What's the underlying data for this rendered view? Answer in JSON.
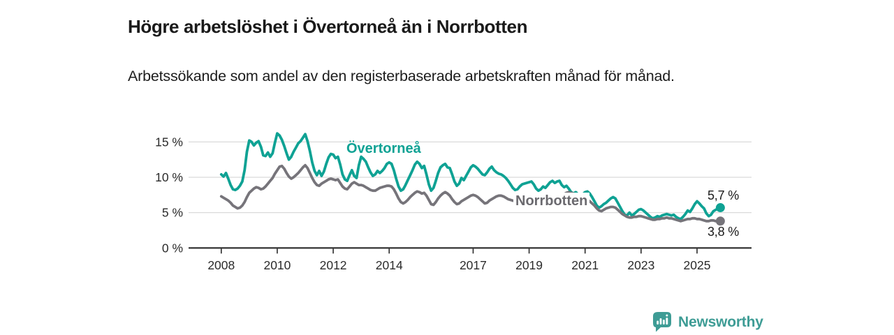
{
  "header": {
    "title": "Högre arbetslöshet i Övertorneå än i Norrbotten",
    "subtitle": "Arbetssökande som andel av den registerbaserade arbetskraften månad för månad."
  },
  "chart": {
    "series_labels": {
      "overtornea": "Övertorneå",
      "norrbotten": "Norrbotten"
    },
    "end_labels": {
      "overtornea": "5,7 %",
      "norrbotten": "3,8 %"
    }
  },
  "footer": {
    "brand": "Newsworthy"
  },
  "colors": {
    "overtornea_line": "#0fa294",
    "norrbotten_line": "#76747a",
    "brand_teal": "#3e9c95",
    "axis": "#2b2b2b",
    "gridline": "#dadada",
    "text": "#1a1a1a"
  },
  "chart_data": {
    "type": "line",
    "title": "Högre arbetslöshet i Övertorneå än i Norrbotten",
    "subtitle": "Arbetssökande som andel av den registerbaserade arbetskraften månad för månad.",
    "unit": "%",
    "x_start_year": 2008,
    "points_per_year": 12,
    "x_axis_ticks": [
      {
        "label": "2008",
        "year": 2008
      },
      {
        "label": "2010",
        "year": 2010
      },
      {
        "label": "2012",
        "year": 2012
      },
      {
        "label": "2014",
        "year": 2014
      },
      {
        "label": "2017",
        "year": 2017
      },
      {
        "label": "2019",
        "year": 2019
      },
      {
        "label": "2021",
        "year": 2021
      },
      {
        "label": "2023",
        "year": 2023
      },
      {
        "label": "2025",
        "year": 2025
      }
    ],
    "y_axis_ticks": [
      {
        "label": "0 %",
        "value": 0
      },
      {
        "label": "5 %",
        "value": 5
      },
      {
        "label": "10 %",
        "value": 10
      },
      {
        "label": "15 %",
        "value": 15
      }
    ],
    "ylim": [
      0,
      16.5
    ],
    "grid": "horizontal",
    "legend_position": "inline-labels",
    "series": [
      {
        "name": "Övertorneå",
        "color": "#0fa294",
        "end_value": 5.7,
        "end_value_label": "5,7 %",
        "values": [
          10.4,
          10.1,
          10.6,
          9.8,
          8.9,
          8.3,
          8.2,
          8.4,
          8.8,
          9.4,
          11.0,
          13.6,
          15.2,
          15.0,
          14.5,
          14.9,
          15.1,
          14.3,
          13.1,
          13.0,
          13.5,
          12.9,
          13.4,
          14.9,
          16.2,
          15.9,
          15.3,
          14.4,
          13.4,
          12.5,
          12.9,
          13.6,
          14.2,
          14.8,
          15.1,
          15.6,
          16.1,
          15.1,
          13.7,
          12.1,
          10.9,
          10.3,
          10.9,
          10.2,
          10.8,
          11.9,
          12.8,
          13.3,
          13.2,
          12.7,
          12.9,
          11.8,
          10.4,
          9.7,
          9.5,
          10.3,
          11.0,
          10.2,
          9.9,
          11.7,
          12.9,
          12.6,
          12.2,
          11.4,
          10.7,
          10.2,
          10.4,
          10.9,
          10.6,
          10.9,
          11.3,
          11.9,
          12.1,
          11.9,
          11.0,
          9.8,
          8.7,
          8.1,
          8.3,
          8.9,
          9.6,
          10.3,
          11.0,
          11.8,
          12.2,
          11.9,
          11.3,
          11.6,
          10.4,
          9.0,
          8.1,
          8.5,
          9.5,
          10.6,
          11.4,
          11.7,
          11.9,
          11.4,
          11.3,
          10.4,
          9.4,
          8.8,
          9.1,
          9.9,
          9.6,
          10.2,
          10.8,
          11.4,
          11.7,
          11.5,
          11.2,
          10.8,
          10.4,
          10.3,
          10.7,
          11.2,
          11.5,
          11.0,
          10.7,
          10.5,
          10.4,
          10.2,
          9.9,
          9.5,
          9.0,
          8.5,
          8.2,
          8.3,
          8.7,
          9.0,
          9.1,
          9.2,
          9.3,
          9.4,
          9.0,
          8.4,
          8.1,
          8.3,
          8.7,
          8.5,
          8.9,
          9.3,
          9.5,
          9.2,
          9.4,
          9.5,
          8.9,
          8.6,
          8.8,
          8.4,
          7.9,
          7.7,
          7.9,
          7.6,
          7.4,
          7.6,
          7.9,
          8.0,
          7.7,
          7.2,
          6.6,
          6.0,
          5.7,
          5.9,
          6.2,
          6.4,
          6.7,
          7.0,
          7.2,
          7.0,
          6.4,
          5.8,
          5.2,
          4.7,
          4.6,
          5.0,
          4.6,
          4.8,
          5.1,
          5.4,
          5.5,
          5.3,
          5.0,
          4.7,
          4.4,
          4.2,
          4.3,
          4.5,
          4.4,
          4.6,
          4.7,
          4.8,
          4.7,
          4.6,
          4.7,
          4.4,
          4.2,
          4.1,
          4.4,
          4.8,
          5.3,
          5.1,
          5.6,
          6.2,
          6.6,
          6.3,
          5.9,
          5.6,
          4.9,
          4.5,
          4.7,
          5.2,
          5.4,
          5.6,
          5.7
        ]
      },
      {
        "name": "Norrbotten",
        "color": "#76747a",
        "end_value": 3.8,
        "end_value_label": "3,8 %",
        "values": [
          7.3,
          7.1,
          6.9,
          6.7,
          6.4,
          6.0,
          5.8,
          5.6,
          5.7,
          6.0,
          6.5,
          7.2,
          7.8,
          8.1,
          8.4,
          8.6,
          8.5,
          8.3,
          8.4,
          8.7,
          9.1,
          9.5,
          9.9,
          10.5,
          11.0,
          11.5,
          11.6,
          11.2,
          10.6,
          10.1,
          9.8,
          10.0,
          10.3,
          10.6,
          11.0,
          11.4,
          11.7,
          11.3,
          10.6,
          9.9,
          9.3,
          8.9,
          8.8,
          9.1,
          9.3,
          9.5,
          9.7,
          9.8,
          9.7,
          9.6,
          9.7,
          9.2,
          8.7,
          8.4,
          8.3,
          8.7,
          9.1,
          9.3,
          9.1,
          8.9,
          8.9,
          8.8,
          8.6,
          8.4,
          8.2,
          8.1,
          8.1,
          8.3,
          8.5,
          8.6,
          8.7,
          8.8,
          8.8,
          8.7,
          8.3,
          7.7,
          7.0,
          6.5,
          6.3,
          6.5,
          6.8,
          7.2,
          7.5,
          7.8,
          8.0,
          7.9,
          7.7,
          7.8,
          7.4,
          6.8,
          6.2,
          6.1,
          6.5,
          7.0,
          7.4,
          7.7,
          7.9,
          7.7,
          7.4,
          6.9,
          6.5,
          6.2,
          6.3,
          6.6,
          6.8,
          7.0,
          7.2,
          7.4,
          7.5,
          7.4,
          7.2,
          6.9,
          6.6,
          6.3,
          6.4,
          6.7,
          6.9,
          7.1,
          7.3,
          7.4,
          7.4,
          7.3,
          7.1,
          6.9,
          6.8,
          6.7,
          6.6,
          6.6,
          6.5,
          6.4,
          6.4,
          6.5,
          6.6,
          6.7,
          6.6,
          6.4,
          6.3,
          6.3,
          6.4,
          6.5,
          6.5,
          6.6,
          6.6,
          6.7,
          6.9,
          7.0,
          7.2,
          7.6,
          7.8,
          7.9,
          7.8,
          7.7,
          7.5,
          7.3,
          7.1,
          7.0,
          6.9,
          6.8,
          6.6,
          6.3,
          6.0,
          5.6,
          5.3,
          5.2,
          5.4,
          5.6,
          5.7,
          5.8,
          5.8,
          5.7,
          5.4,
          5.1,
          4.8,
          4.6,
          4.4,
          4.3,
          4.3,
          4.4,
          4.4,
          4.5,
          4.5,
          4.4,
          4.3,
          4.2,
          4.1,
          4.0,
          4.0,
          4.1,
          4.1,
          4.2,
          4.2,
          4.3,
          4.2,
          4.2,
          4.1,
          4.0,
          3.9,
          3.8,
          3.9,
          4.0,
          4.1,
          4.1,
          4.2,
          4.2,
          4.1,
          4.1,
          4.0,
          3.9,
          3.8,
          3.8,
          3.9,
          3.9,
          3.8,
          3.8,
          3.8
        ]
      }
    ]
  }
}
